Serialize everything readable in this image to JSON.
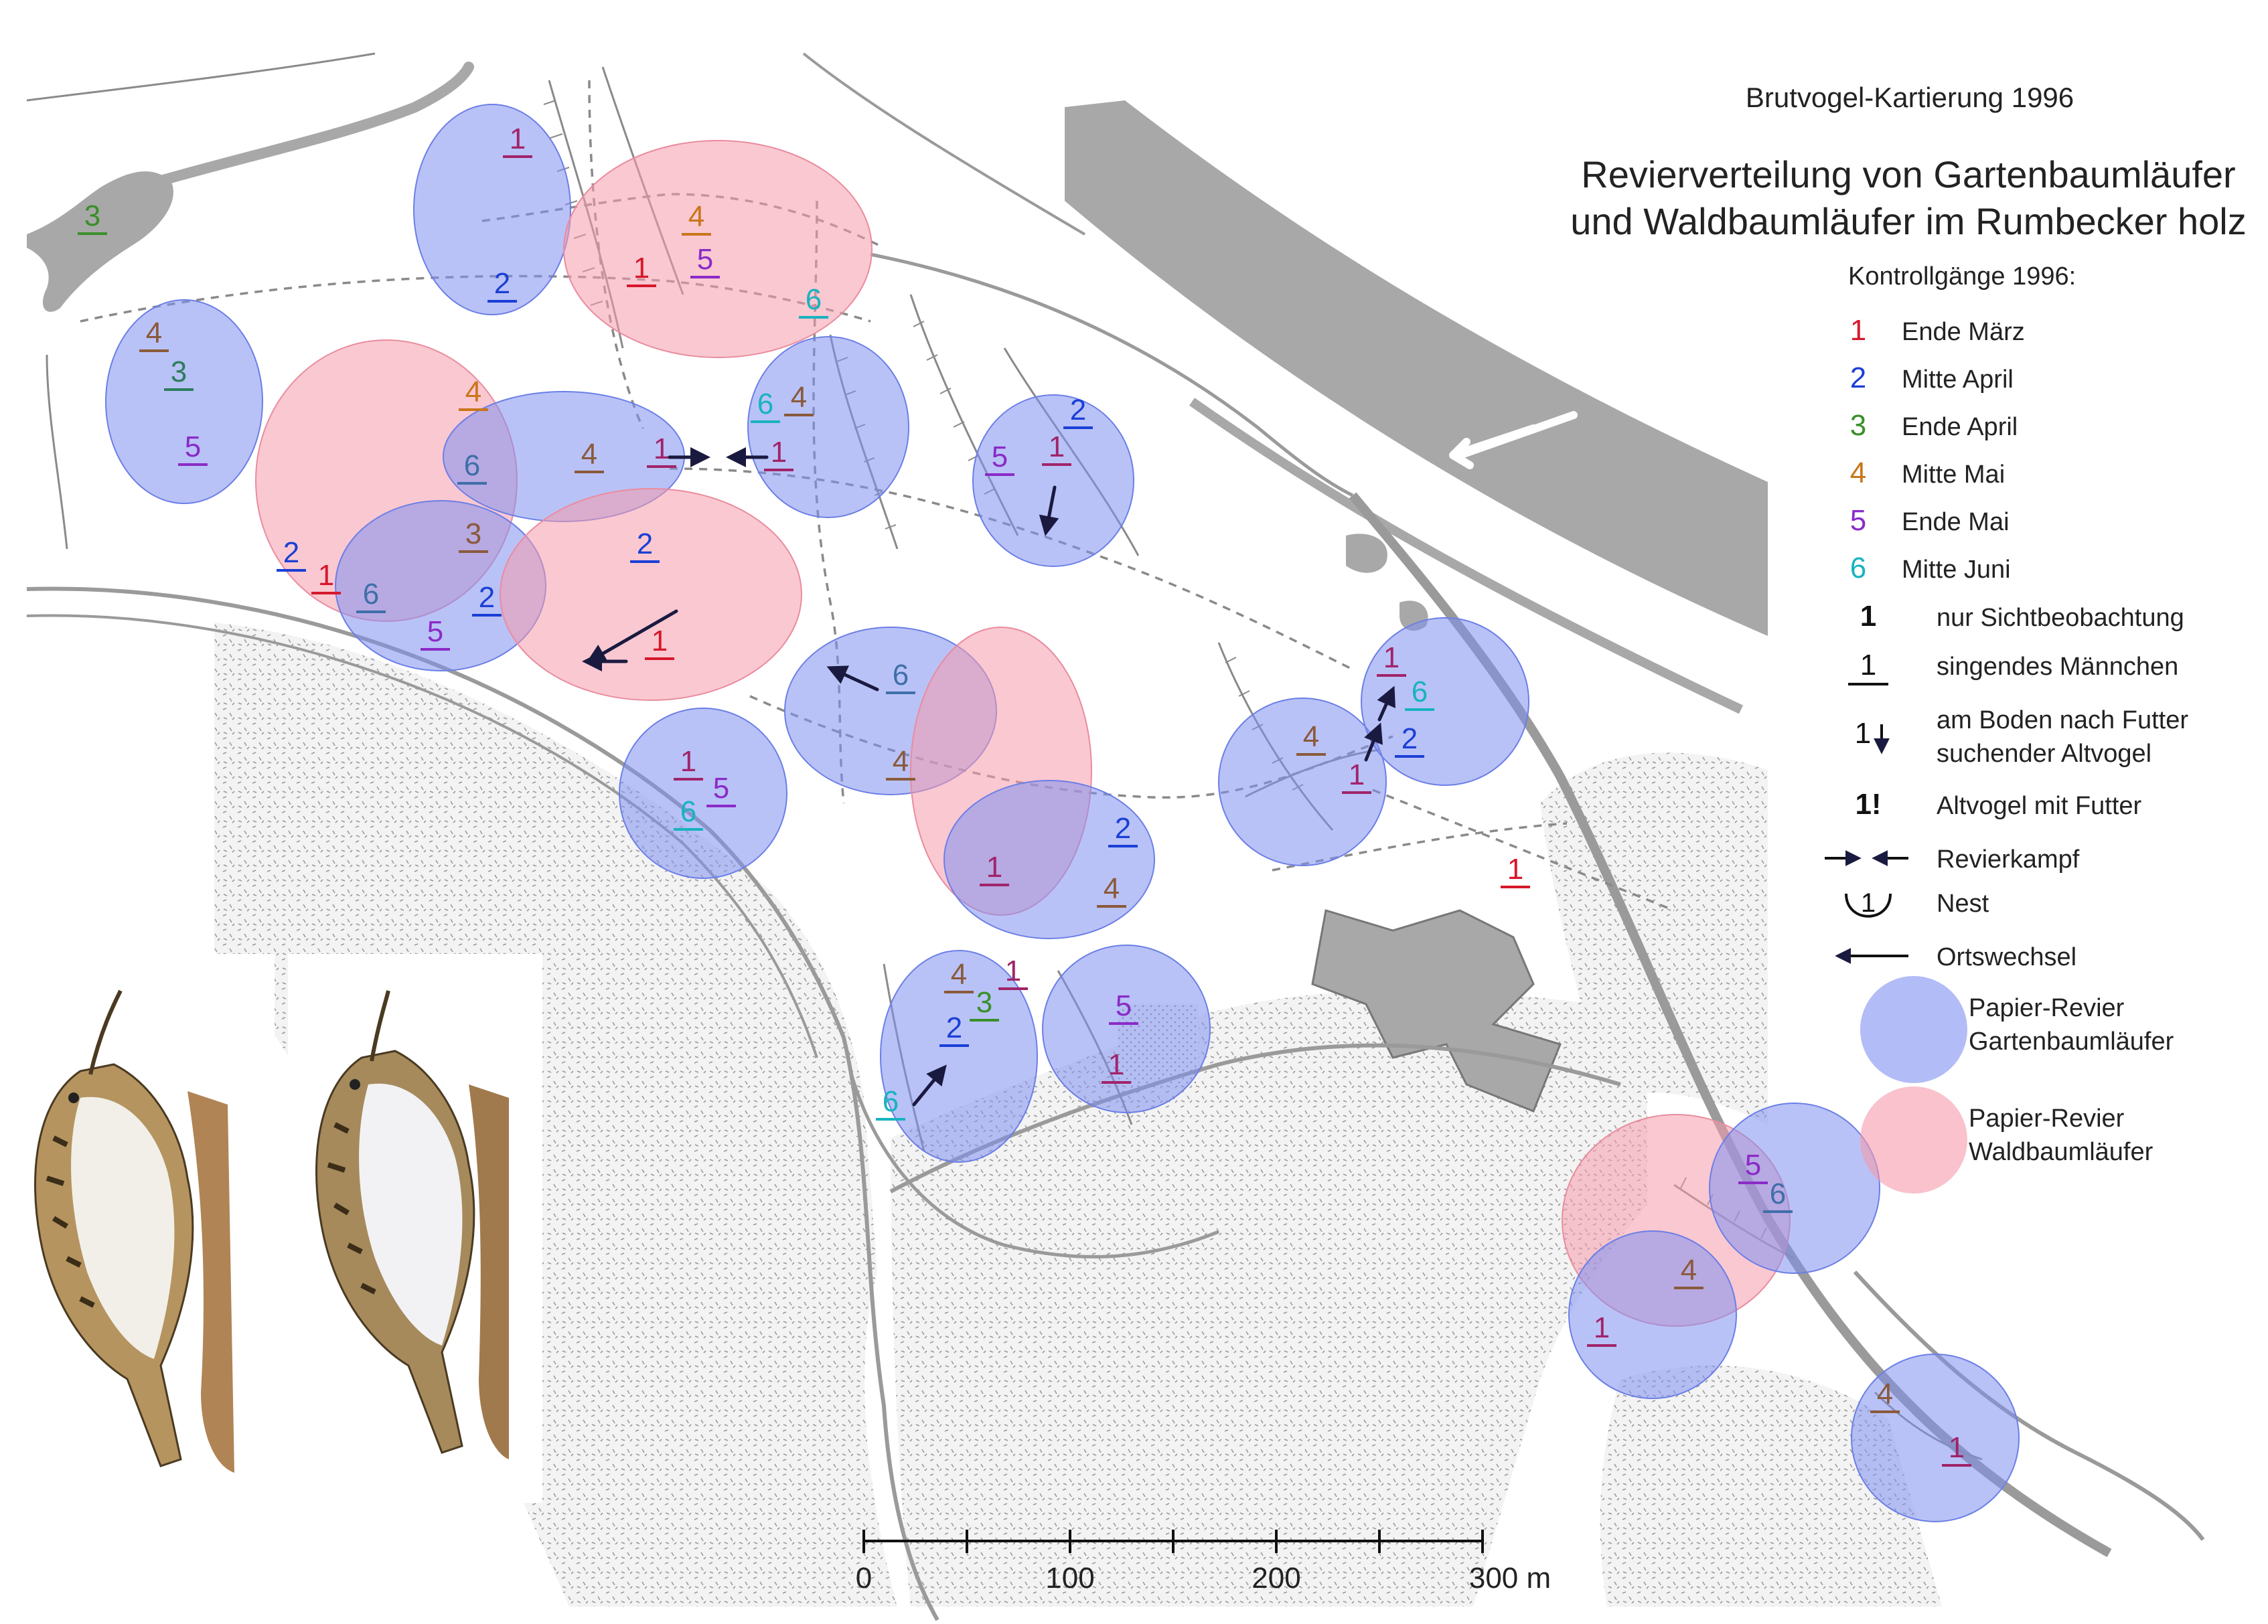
{
  "header": {
    "line1": "Brutvogel-Kartierung 1996",
    "title_line1": "Revierverteilung von Gartenbaumläufer",
    "title_line2": "und Waldbaumläufer im Rumbecker holz"
  },
  "legend": {
    "title": "Kontrollgänge 1996:",
    "visits": [
      {
        "num": "1",
        "label": "Ende März",
        "color": "#d6182b"
      },
      {
        "num": "2",
        "label": "Mitte April",
        "color": "#1b3fd6"
      },
      {
        "num": "3",
        "label": "Ende April",
        "color": "#3a8f2a"
      },
      {
        "num": "4",
        "label": "Mitte Mai",
        "color": "#c9761c"
      },
      {
        "num": "5",
        "label": "Ende Mai",
        "color": "#8a2bc8"
      },
      {
        "num": "6",
        "label": "Mitte Juni",
        "color": "#19b3c0"
      }
    ],
    "symbols": [
      {
        "sym": "1",
        "label": "nur Sichtbeobachtung"
      },
      {
        "sym": "1",
        "label": "singendes Männchen"
      },
      {
        "sym": "1",
        "label_line1": "am Boden nach Futter",
        "label_line2": "suchender Altvogel"
      },
      {
        "sym": "1!",
        "label": "Altvogel mit Futter"
      },
      {
        "sym": "→←",
        "label": "Revierkampf"
      },
      {
        "sym": "1",
        "label": "Nest"
      },
      {
        "sym": "←",
        "label": "Ortswechsel"
      }
    ],
    "territories": [
      {
        "label_line1": "Papier-Revier",
        "label_line2": "Gartenbaumläufer",
        "color": "#7f8ff0"
      },
      {
        "label_line1": "Papier-Revier",
        "label_line2": "Waldbaumläufer",
        "color": "#f59aab"
      }
    ]
  },
  "scale_bar": {
    "labels": [
      "0",
      "100",
      "200",
      "300 m"
    ]
  },
  "territories": [
    {
      "species": "garten",
      "obs": [
        [
          "1",
          "#a0246a"
        ],
        [
          "2",
          "#1b3fd6"
        ]
      ]
    },
    {
      "species": "wald",
      "obs": [
        [
          "4",
          "#c9761c"
        ],
        [
          "1",
          "#d6182b"
        ],
        [
          "5",
          "#8a2bc8"
        ],
        [
          "6",
          "#19b3c0"
        ]
      ]
    },
    {
      "species": "garten",
      "obs": [
        [
          "3",
          "#3a8f2a"
        ]
      ]
    },
    {
      "species": "garten",
      "obs": [
        [
          "4",
          "#8a5a3c"
        ],
        [
          "3",
          "#2e7d5e"
        ],
        [
          "5",
          "#8a2bc8"
        ]
      ]
    },
    {
      "species": "wald",
      "obs": [
        [
          "4",
          "#c9761c"
        ],
        [
          "2",
          "#1b3fd6"
        ],
        [
          "1",
          "#d6182b"
        ]
      ]
    },
    {
      "species": "garten",
      "obs": [
        [
          "6",
          "#3f6fa8"
        ],
        [
          "4",
          "#8a5a3c"
        ],
        [
          "1",
          "#a0246a"
        ]
      ]
    },
    {
      "species": "garten",
      "obs": [
        [
          "3",
          "#8a5a3c"
        ],
        [
          "6",
          "#3f6fa8"
        ],
        [
          "5",
          "#8a2bc8"
        ],
        [
          "2",
          "#1b3fd6"
        ]
      ]
    },
    {
      "species": "wald",
      "obs": [
        [
          "2",
          "#1b3fd6"
        ],
        [
          "1",
          "#d6182b"
        ]
      ]
    },
    {
      "species": "garten",
      "obs": [
        [
          "6",
          "#19b3c0"
        ],
        [
          "4",
          "#8a5a3c"
        ],
        [
          "1",
          "#a0246a"
        ]
      ]
    },
    {
      "species": "garten",
      "obs": [
        [
          "2",
          "#1b3fd6"
        ],
        [
          "5",
          "#8a2bc8"
        ],
        [
          "1",
          "#a0246a"
        ]
      ]
    },
    {
      "species": "garten",
      "obs": [
        [
          "6",
          "#3f6fa8"
        ]
      ]
    },
    {
      "species": "wald",
      "obs": [
        [
          "4",
          "#8a5a3c"
        ]
      ]
    },
    {
      "species": "garten",
      "obs": [
        [
          "1",
          "#a0246a"
        ],
        [
          "6",
          "#19b3c0"
        ],
        [
          "5",
          "#8a2bc8"
        ]
      ]
    },
    {
      "species": "garten",
      "obs": [
        [
          "2",
          "#1b3fd6"
        ],
        [
          "1",
          "#a0246a"
        ],
        [
          "4",
          "#8a5a3c"
        ]
      ]
    },
    {
      "species": "garten",
      "obs": [
        [
          "4",
          "#8a5a3c"
        ],
        [
          "1",
          "#a0246a"
        ]
      ]
    },
    {
      "species": "garten",
      "obs": [
        [
          "1",
          "#a0246a"
        ],
        [
          "6",
          "#19b3c0"
        ],
        [
          "2",
          "#1b3fd6"
        ]
      ]
    },
    {
      "species": "garten",
      "obs": [
        [
          "4",
          "#8a5a3c"
        ],
        [
          "3",
          "#3a8f2a"
        ],
        [
          "1",
          "#a0246a"
        ],
        [
          "2",
          "#1b3fd6"
        ],
        [
          "6",
          "#19b3c0"
        ]
      ]
    },
    {
      "species": "garten",
      "obs": [
        [
          "5",
          "#8a2bc8"
        ],
        [
          "1",
          "#a0246a"
        ]
      ]
    },
    {
      "species": "wald",
      "obs": [
        [
          "4",
          "#8a5a3c"
        ]
      ]
    },
    {
      "species": "garten",
      "obs": [
        [
          "5",
          "#8a2bc8"
        ],
        [
          "6",
          "#3f6fa8"
        ]
      ]
    },
    {
      "species": "garten",
      "obs": [
        [
          "1",
          "#a0246a"
        ]
      ]
    },
    {
      "species": "garten",
      "obs": [
        [
          "4",
          "#8a5a3c"
        ],
        [
          "1",
          "#a0246a"
        ]
      ]
    },
    {
      "species": "none",
      "obs": [
        [
          "1",
          "#d6182b"
        ]
      ]
    }
  ]
}
